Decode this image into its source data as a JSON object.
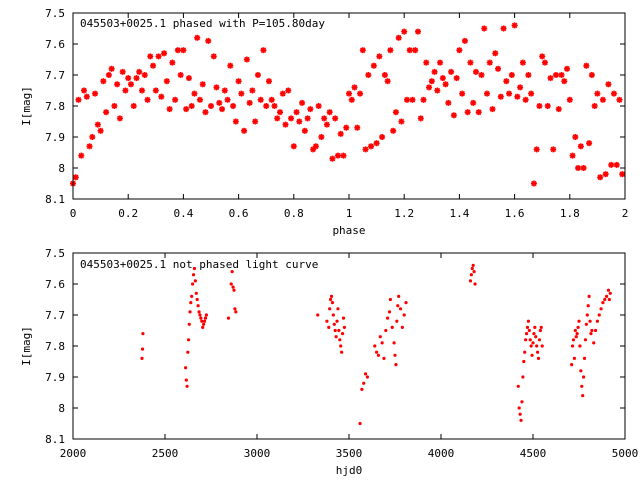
{
  "chart_data": [
    {
      "type": "scatter",
      "title": "045503+0025.1 phased with P=105.80day",
      "xlabel": "phase",
      "ylabel": "I[mag]",
      "xlim": [
        0,
        2
      ],
      "ylim": [
        7.5,
        8.1
      ],
      "y_inverted": true,
      "grid": false,
      "legend": "none",
      "color": "#ff0000",
      "marker": "asterisk",
      "x_ticks": [
        "0",
        "0.2",
        "0.4",
        "0.6",
        "0.8",
        "1",
        "1.2",
        "1.4",
        "1.6",
        "1.8",
        "2"
      ],
      "y_ticks": [
        "7.5",
        "7.6",
        "7.7",
        "7.8",
        "7.9",
        "8",
        "8.1"
      ],
      "points": [
        [
          0.0,
          8.05
        ],
        [
          0.01,
          8.03
        ],
        [
          0.02,
          7.78
        ],
        [
          0.03,
          7.96
        ],
        [
          0.04,
          7.75
        ],
        [
          0.05,
          7.77
        ],
        [
          0.06,
          7.93
        ],
        [
          0.07,
          7.9
        ],
        [
          0.08,
          7.76
        ],
        [
          0.09,
          7.86
        ],
        [
          0.1,
          7.88
        ],
        [
          0.11,
          7.72
        ],
        [
          0.12,
          7.82
        ],
        [
          0.13,
          7.7
        ],
        [
          0.14,
          7.68
        ],
        [
          0.15,
          7.8
        ],
        [
          0.16,
          7.73
        ],
        [
          0.17,
          7.84
        ],
        [
          0.18,
          7.69
        ],
        [
          0.19,
          7.75
        ],
        [
          0.2,
          7.71
        ],
        [
          0.21,
          7.73
        ],
        [
          0.22,
          7.8
        ],
        [
          0.23,
          7.71
        ],
        [
          0.24,
          7.69
        ],
        [
          0.25,
          7.75
        ],
        [
          0.26,
          7.7
        ],
        [
          0.27,
          7.78
        ],
        [
          0.28,
          7.64
        ],
        [
          0.29,
          7.67
        ],
        [
          0.3,
          7.75
        ],
        [
          0.31,
          7.64
        ],
        [
          0.32,
          7.77
        ],
        [
          0.33,
          7.63
        ],
        [
          0.34,
          7.72
        ],
        [
          0.35,
          7.81
        ],
        [
          0.36,
          7.66
        ],
        [
          0.37,
          7.78
        ],
        [
          0.38,
          7.62
        ],
        [
          0.39,
          7.7
        ],
        [
          0.4,
          7.62
        ],
        [
          0.41,
          7.81
        ],
        [
          0.42,
          7.71
        ],
        [
          0.43,
          7.8
        ],
        [
          0.44,
          7.76
        ],
        [
          0.45,
          7.58
        ],
        [
          0.46,
          7.78
        ],
        [
          0.47,
          7.73
        ],
        [
          0.48,
          7.82
        ],
        [
          0.49,
          7.59
        ],
        [
          0.5,
          7.8
        ],
        [
          0.51,
          7.64
        ],
        [
          0.52,
          7.74
        ],
        [
          0.53,
          7.79
        ],
        [
          0.54,
          7.81
        ],
        [
          0.55,
          7.75
        ],
        [
          0.56,
          7.78
        ],
        [
          0.57,
          7.67
        ],
        [
          0.58,
          7.8
        ],
        [
          0.59,
          7.85
        ],
        [
          0.6,
          7.72
        ],
        [
          0.61,
          7.76
        ],
        [
          0.62,
          7.88
        ],
        [
          0.63,
          7.65
        ],
        [
          0.64,
          7.79
        ],
        [
          0.65,
          7.75
        ],
        [
          0.66,
          7.85
        ],
        [
          0.67,
          7.7
        ],
        [
          0.68,
          7.78
        ],
        [
          0.69,
          7.62
        ],
        [
          0.7,
          7.8
        ],
        [
          0.71,
          7.72
        ],
        [
          0.72,
          7.78
        ],
        [
          0.73,
          7.8
        ],
        [
          0.74,
          7.84
        ],
        [
          0.75,
          7.82
        ],
        [
          0.76,
          7.76
        ],
        [
          0.77,
          7.86
        ],
        [
          0.78,
          7.75
        ],
        [
          0.79,
          7.84
        ],
        [
          0.8,
          7.93
        ],
        [
          0.81,
          7.82
        ],
        [
          0.82,
          7.85
        ],
        [
          0.83,
          7.79
        ],
        [
          0.84,
          7.88
        ],
        [
          0.85,
          7.84
        ],
        [
          0.86,
          7.81
        ],
        [
          0.87,
          7.94
        ],
        [
          0.88,
          7.93
        ],
        [
          0.89,
          7.8
        ],
        [
          0.9,
          7.9
        ],
        [
          0.91,
          7.84
        ],
        [
          0.92,
          7.86
        ],
        [
          0.93,
          7.82
        ],
        [
          0.94,
          7.97
        ],
        [
          0.95,
          7.84
        ],
        [
          0.96,
          7.96
        ],
        [
          0.97,
          7.89
        ],
        [
          0.98,
          7.96
        ],
        [
          0.99,
          7.87
        ],
        [
          1.0,
          7.76
        ],
        [
          1.01,
          7.78
        ],
        [
          1.02,
          7.74
        ],
        [
          1.03,
          7.87
        ],
        [
          1.04,
          7.76
        ],
        [
          1.05,
          7.62
        ],
        [
          1.06,
          7.94
        ],
        [
          1.07,
          7.7
        ],
        [
          1.08,
          7.93
        ],
        [
          1.09,
          7.67
        ],
        [
          1.1,
          7.92
        ],
        [
          1.11,
          7.64
        ],
        [
          1.12,
          7.9
        ],
        [
          1.13,
          7.7
        ],
        [
          1.14,
          7.72
        ],
        [
          1.15,
          7.62
        ],
        [
          1.16,
          7.88
        ],
        [
          1.17,
          7.82
        ],
        [
          1.18,
          7.58
        ],
        [
          1.19,
          7.85
        ],
        [
          1.2,
          7.56
        ],
        [
          1.21,
          7.78
        ],
        [
          1.22,
          7.62
        ],
        [
          1.23,
          7.78
        ],
        [
          1.24,
          7.62
        ],
        [
          1.25,
          7.56
        ],
        [
          1.26,
          7.84
        ],
        [
          1.27,
          7.78
        ],
        [
          1.28,
          7.66
        ],
        [
          1.29,
          7.74
        ],
        [
          1.3,
          7.72
        ],
        [
          1.31,
          7.69
        ],
        [
          1.32,
          7.75
        ],
        [
          1.33,
          7.66
        ],
        [
          1.34,
          7.71
        ],
        [
          1.35,
          7.73
        ],
        [
          1.36,
          7.79
        ],
        [
          1.37,
          7.69
        ],
        [
          1.38,
          7.83
        ],
        [
          1.39,
          7.71
        ],
        [
          1.4,
          7.62
        ],
        [
          1.41,
          7.76
        ],
        [
          1.42,
          7.59
        ],
        [
          1.43,
          7.82
        ],
        [
          1.44,
          7.66
        ],
        [
          1.45,
          7.79
        ],
        [
          1.46,
          7.69
        ],
        [
          1.47,
          7.82
        ],
        [
          1.48,
          7.7
        ],
        [
          1.49,
          7.55
        ],
        [
          1.5,
          7.76
        ],
        [
          1.51,
          7.66
        ],
        [
          1.52,
          7.81
        ],
        [
          1.53,
          7.63
        ],
        [
          1.54,
          7.68
        ],
        [
          1.55,
          7.77
        ],
        [
          1.56,
          7.55
        ],
        [
          1.57,
          7.72
        ],
        [
          1.58,
          7.76
        ],
        [
          1.59,
          7.7
        ],
        [
          1.6,
          7.54
        ],
        [
          1.61,
          7.77
        ],
        [
          1.62,
          7.74
        ],
        [
          1.63,
          7.66
        ],
        [
          1.64,
          7.78
        ],
        [
          1.65,
          7.7
        ],
        [
          1.66,
          7.76
        ],
        [
          1.67,
          8.05
        ],
        [
          1.68,
          7.94
        ],
        [
          1.69,
          7.8
        ],
        [
          1.7,
          7.64
        ],
        [
          1.71,
          7.66
        ],
        [
          1.72,
          7.8
        ],
        [
          1.73,
          7.71
        ],
        [
          1.74,
          7.94
        ],
        [
          1.75,
          7.7
        ],
        [
          1.76,
          7.81
        ],
        [
          1.77,
          7.7
        ],
        [
          1.78,
          7.72
        ],
        [
          1.79,
          7.68
        ],
        [
          1.8,
          7.78
        ],
        [
          1.81,
          7.96
        ],
        [
          1.82,
          7.9
        ],
        [
          1.83,
          8.0
        ],
        [
          1.84,
          7.93
        ],
        [
          1.85,
          8.0
        ],
        [
          1.86,
          7.67
        ],
        [
          1.87,
          7.92
        ],
        [
          1.88,
          7.7
        ],
        [
          1.89,
          7.8
        ],
        [
          1.9,
          7.76
        ],
        [
          1.91,
          8.03
        ],
        [
          1.92,
          7.78
        ],
        [
          1.93,
          8.02
        ],
        [
          1.94,
          7.73
        ],
        [
          1.95,
          7.99
        ],
        [
          1.96,
          7.76
        ],
        [
          1.97,
          7.99
        ],
        [
          1.98,
          7.78
        ],
        [
          1.99,
          8.02
        ]
      ]
    },
    {
      "type": "scatter",
      "title": "045503+0025.1 not phased light curve",
      "xlabel": "hjd0",
      "ylabel": "I[mag]",
      "xlim": [
        2000,
        5000
      ],
      "ylim": [
        7.5,
        8.1
      ],
      "y_inverted": true,
      "grid": false,
      "legend": "none",
      "color": "#ff0000",
      "marker": "dot",
      "x_ticks": [
        "2000",
        "2500",
        "3000",
        "3500",
        "4000",
        "4500",
        "5000"
      ],
      "y_ticks": [
        "7.5",
        "7.6",
        "7.7",
        "7.8",
        "7.9",
        "8",
        "8.1"
      ],
      "points": [
        [
          2375,
          7.84
        ],
        [
          2378,
          7.81
        ],
        [
          2380,
          7.76
        ],
        [
          2612,
          7.87
        ],
        [
          2616,
          7.91
        ],
        [
          2620,
          7.93
        ],
        [
          2624,
          7.82
        ],
        [
          2628,
          7.78
        ],
        [
          2632,
          7.73
        ],
        [
          2636,
          7.69
        ],
        [
          2640,
          7.66
        ],
        [
          2645,
          7.64
        ],
        [
          2650,
          7.6
        ],
        [
          2655,
          7.57
        ],
        [
          2660,
          7.55
        ],
        [
          2665,
          7.59
        ],
        [
          2670,
          7.63
        ],
        [
          2675,
          7.65
        ],
        [
          2680,
          7.67
        ],
        [
          2685,
          7.69
        ],
        [
          2690,
          7.7
        ],
        [
          2695,
          7.71
        ],
        [
          2700,
          7.72
        ],
        [
          2705,
          7.74
        ],
        [
          2710,
          7.73
        ],
        [
          2715,
          7.72
        ],
        [
          2720,
          7.71
        ],
        [
          2725,
          7.7
        ],
        [
          2845,
          7.71
        ],
        [
          2860,
          7.6
        ],
        [
          2865,
          7.56
        ],
        [
          2870,
          7.61
        ],
        [
          2875,
          7.62
        ],
        [
          2880,
          7.68
        ],
        [
          2885,
          7.69
        ],
        [
          3330,
          7.7
        ],
        [
          3380,
          7.72
        ],
        [
          3390,
          7.74
        ],
        [
          3395,
          7.68
        ],
        [
          3400,
          7.65
        ],
        [
          3405,
          7.64
        ],
        [
          3410,
          7.66
        ],
        [
          3415,
          7.7
        ],
        [
          3420,
          7.73
        ],
        [
          3425,
          7.75
        ],
        [
          3430,
          7.77
        ],
        [
          3435,
          7.72
        ],
        [
          3440,
          7.68
        ],
        [
          3445,
          7.75
        ],
        [
          3450,
          7.78
        ],
        [
          3455,
          7.8
        ],
        [
          3460,
          7.82
        ],
        [
          3465,
          7.76
        ],
        [
          3470,
          7.71
        ],
        [
          3475,
          7.74
        ],
        [
          3560,
          8.05
        ],
        [
          3570,
          7.94
        ],
        [
          3580,
          7.92
        ],
        [
          3590,
          7.89
        ],
        [
          3600,
          7.9
        ],
        [
          3640,
          7.8
        ],
        [
          3650,
          7.82
        ],
        [
          3660,
          7.83
        ],
        [
          3670,
          7.77
        ],
        [
          3680,
          7.79
        ],
        [
          3690,
          7.84
        ],
        [
          3700,
          7.75
        ],
        [
          3710,
          7.71
        ],
        [
          3720,
          7.69
        ],
        [
          3725,
          7.65
        ],
        [
          3735,
          7.74
        ],
        [
          3745,
          7.79
        ],
        [
          3750,
          7.83
        ],
        [
          3755,
          7.86
        ],
        [
          3760,
          7.72
        ],
        [
          3765,
          7.67
        ],
        [
          3770,
          7.64
        ],
        [
          3780,
          7.68
        ],
        [
          3790,
          7.74
        ],
        [
          3800,
          7.7
        ],
        [
          3810,
          7.66
        ],
        [
          4160,
          7.59
        ],
        [
          4165,
          7.57
        ],
        [
          4170,
          7.55
        ],
        [
          4175,
          7.54
        ],
        [
          4180,
          7.56
        ],
        [
          4185,
          7.6
        ],
        [
          4420,
          7.93
        ],
        [
          4425,
          8.0
        ],
        [
          4430,
          8.02
        ],
        [
          4435,
          8.04
        ],
        [
          4440,
          7.98
        ],
        [
          4445,
          7.9
        ],
        [
          4450,
          7.85
        ],
        [
          4455,
          7.82
        ],
        [
          4460,
          7.78
        ],
        [
          4465,
          7.76
        ],
        [
          4470,
          7.74
        ],
        [
          4475,
          7.72
        ],
        [
          4480,
          7.75
        ],
        [
          4485,
          7.78
        ],
        [
          4490,
          7.8
        ],
        [
          4495,
          7.83
        ],
        [
          4500,
          7.79
        ],
        [
          4505,
          7.76
        ],
        [
          4510,
          7.74
        ],
        [
          4515,
          7.77
        ],
        [
          4520,
          7.8
        ],
        [
          4525,
          7.82
        ],
        [
          4530,
          7.84
        ],
        [
          4535,
          7.78
        ],
        [
          4540,
          7.75
        ],
        [
          4545,
          7.74
        ],
        [
          4550,
          7.8
        ],
        [
          4710,
          7.86
        ],
        [
          4715,
          7.8
        ],
        [
          4720,
          7.78
        ],
        [
          4725,
          7.84
        ],
        [
          4730,
          7.75
        ],
        [
          4735,
          7.77
        ],
        [
          4740,
          7.76
        ],
        [
          4745,
          7.74
        ],
        [
          4750,
          7.72
        ],
        [
          4755,
          7.8
        ],
        [
          4760,
          7.88
        ],
        [
          4765,
          7.93
        ],
        [
          4770,
          7.96
        ],
        [
          4775,
          7.9
        ],
        [
          4780,
          7.84
        ],
        [
          4785,
          7.78
        ],
        [
          4790,
          7.73
        ],
        [
          4795,
          7.7
        ],
        [
          4800,
          7.67
        ],
        [
          4805,
          7.64
        ],
        [
          4810,
          7.72
        ],
        [
          4815,
          7.76
        ],
        [
          4820,
          7.75
        ],
        [
          4830,
          7.79
        ],
        [
          4840,
          7.75
        ],
        [
          4850,
          7.72
        ],
        [
          4860,
          7.7
        ],
        [
          4870,
          7.68
        ],
        [
          4880,
          7.66
        ],
        [
          4890,
          7.65
        ],
        [
          4900,
          7.64
        ],
        [
          4910,
          7.62
        ],
        [
          4915,
          7.65
        ],
        [
          4920,
          7.63
        ]
      ]
    }
  ]
}
